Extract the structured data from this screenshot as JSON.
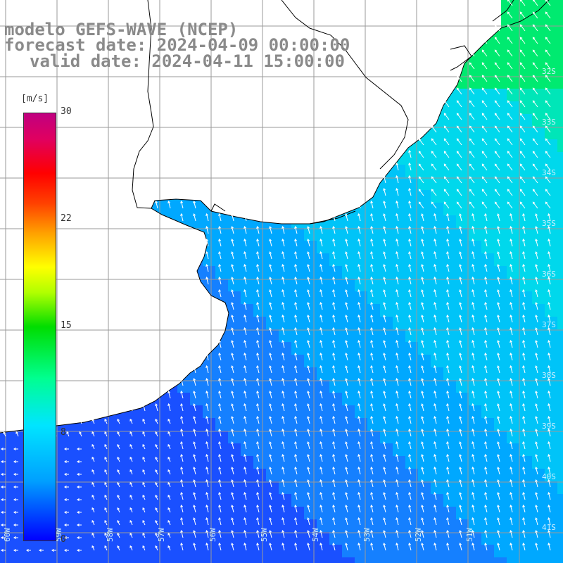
{
  "title": {
    "line1": "modelo GEFS-WAVE (NCEP)",
    "line2": "forecast date: 2024-04-09 00:00:00",
    "line3": "valid date: 2024-04-11 15:00:00"
  },
  "colorbar": {
    "unit": "[m/s]",
    "ticks": [
      "30",
      "22",
      "15",
      "8",
      "0"
    ],
    "min": 0,
    "max": 30,
    "colors": [
      "#0000ff",
      "#00a0ff",
      "#00e5ff",
      "#00ff90",
      "#00dd00",
      "#ffff00",
      "#ffa000",
      "#ff0000",
      "#c00080"
    ]
  },
  "lat_labels": [
    "32S",
    "33S",
    "34S",
    "35S",
    "36S",
    "37S",
    "38S",
    "39S",
    "40S",
    "41S"
  ],
  "lon_labels": [
    "60W",
    "59W",
    "58W",
    "57W",
    "56W",
    "55W",
    "54W",
    "53W",
    "52W",
    "51W"
  ],
  "map": {
    "land_color": "#ffffff",
    "coast_color": "#000000",
    "grid_color": "#9a9a9a",
    "arrow_color": "#ffffff"
  }
}
